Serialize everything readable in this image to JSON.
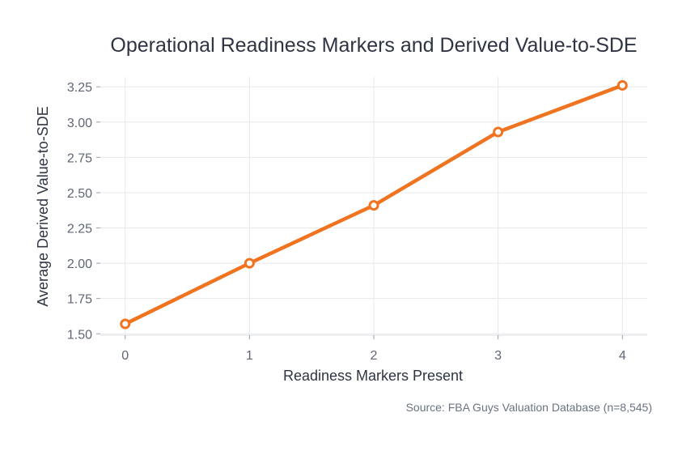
{
  "chart_data": {
    "type": "line",
    "title": "Operational Readiness Markers and Derived Value-to-SDE",
    "xlabel": "Readiness Markers Present",
    "ylabel": "Average Derived Value-to-SDE",
    "x": [
      0,
      1,
      2,
      3,
      4
    ],
    "series": [
      {
        "values": [
          1.57,
          2.0,
          2.41,
          2.93,
          3.26
        ]
      }
    ],
    "xlim": [
      -0.2,
      4.2
    ],
    "ylim": [
      1.49,
      3.32
    ],
    "x_ticks": [
      "0",
      "1",
      "2",
      "3",
      "4"
    ],
    "y_ticks": [
      "1.50",
      "1.75",
      "2.00",
      "2.25",
      "2.50",
      "2.75",
      "3.00",
      "3.25"
    ],
    "grid": true,
    "colors": {
      "line": "#f07320",
      "marker_fill": "#ffffff",
      "grid": "#e6e8ec"
    },
    "source": "Source: FBA Guys Valuation Database (n=8,545)"
  }
}
